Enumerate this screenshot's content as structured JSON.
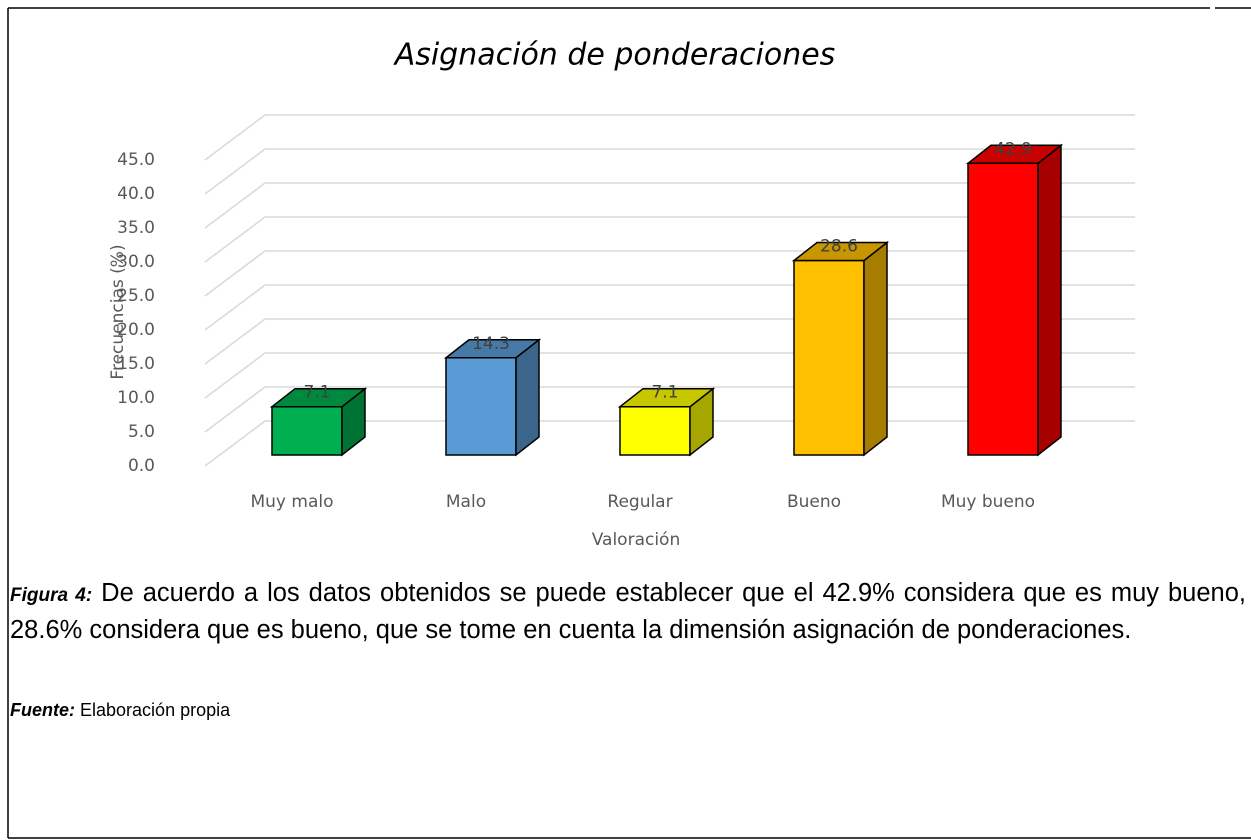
{
  "chart_data": {
    "type": "bar3d",
    "title": "Asignación de ponderaciones",
    "x_label": "Valoración",
    "y_label": "Frecuencias (%)",
    "categories": [
      "Muy malo",
      "Malo",
      "Regular",
      "Bueno",
      "Muy bueno"
    ],
    "values": [
      7.1,
      14.3,
      7.1,
      28.6,
      42.9
    ],
    "colors": [
      "#00b050",
      "#5b9bd5",
      "#ffff00",
      "#ffc000",
      "#ff0000"
    ],
    "ylim": [
      0,
      45
    ],
    "yticks": [
      {
        "value": 0,
        "label": "0.0"
      },
      {
        "value": 5,
        "label": "5.0"
      },
      {
        "value": 10,
        "label": "10.0"
      },
      {
        "value": 15,
        "label": "15.0"
      },
      {
        "value": 20,
        "label": "20.0"
      },
      {
        "value": 25,
        "label": "25.0"
      },
      {
        "value": 30,
        "label": "30.0"
      },
      {
        "value": 35,
        "label": "35.0"
      },
      {
        "value": 40,
        "label": "40.0"
      },
      {
        "value": 45,
        "label": "45.0"
      }
    ],
    "grid": true
  },
  "caption": {
    "label": "Figura  4:",
    "text": "De acuerdo a los datos obtenidos se puede establecer que el 42.9% considera que es muy bueno, 28.6% considera que es bueno, que se tome en cuenta la dimensión asignación de ponderaciones."
  },
  "source": {
    "label": "Fuente:",
    "text": "Elaboración propia"
  }
}
